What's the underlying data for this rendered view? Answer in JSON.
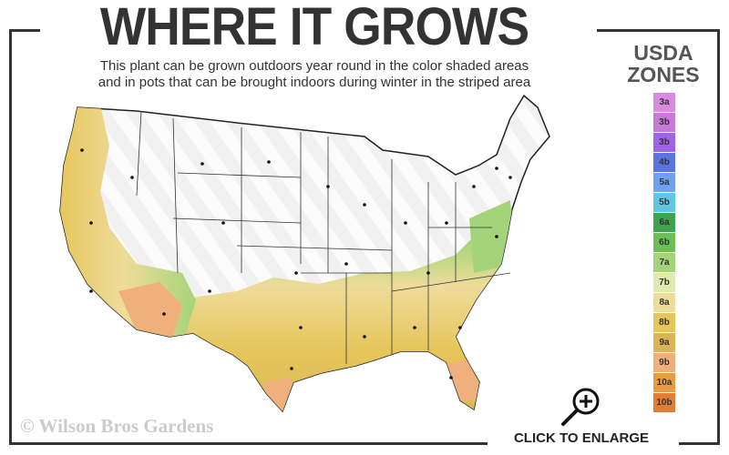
{
  "header": {
    "title": "WHERE IT GROWS",
    "subtitle_line1": "This plant can be grown outdoors year round in the color shaded areas",
    "subtitle_line2": "and in pots that can be brought indoors during winter in the striped area"
  },
  "legend": {
    "title_line1": "USDA",
    "title_line2": "ZONES",
    "zones": [
      {
        "label": "3a",
        "color": "#d98be0"
      },
      {
        "label": "3b",
        "color": "#c67ad6"
      },
      {
        "label": "3b",
        "color": "#a064e6"
      },
      {
        "label": "4b",
        "color": "#5c74e0"
      },
      {
        "label": "5a",
        "color": "#6ea2ef"
      },
      {
        "label": "5b",
        "color": "#5ec8e0"
      },
      {
        "label": "6a",
        "color": "#3fa24f"
      },
      {
        "label": "6b",
        "color": "#6cbf58"
      },
      {
        "label": "7a",
        "color": "#a4d47a"
      },
      {
        "label": "7b",
        "color": "#dfe9b0"
      },
      {
        "label": "8a",
        "color": "#eedc9a"
      },
      {
        "label": "8b",
        "color": "#e6c55a"
      },
      {
        "label": "9a",
        "color": "#d9b558"
      },
      {
        "label": "9b",
        "color": "#f0b07e"
      },
      {
        "label": "10a",
        "color": "#e99a45"
      },
      {
        "label": "10b",
        "color": "#e07e35"
      }
    ]
  },
  "footer": {
    "copyright": "© Wilson Bros Gardens",
    "enlarge_label": "CLICK TO ENLARGE"
  },
  "icons": {
    "enlarge": "magnifier-plus-icon"
  }
}
